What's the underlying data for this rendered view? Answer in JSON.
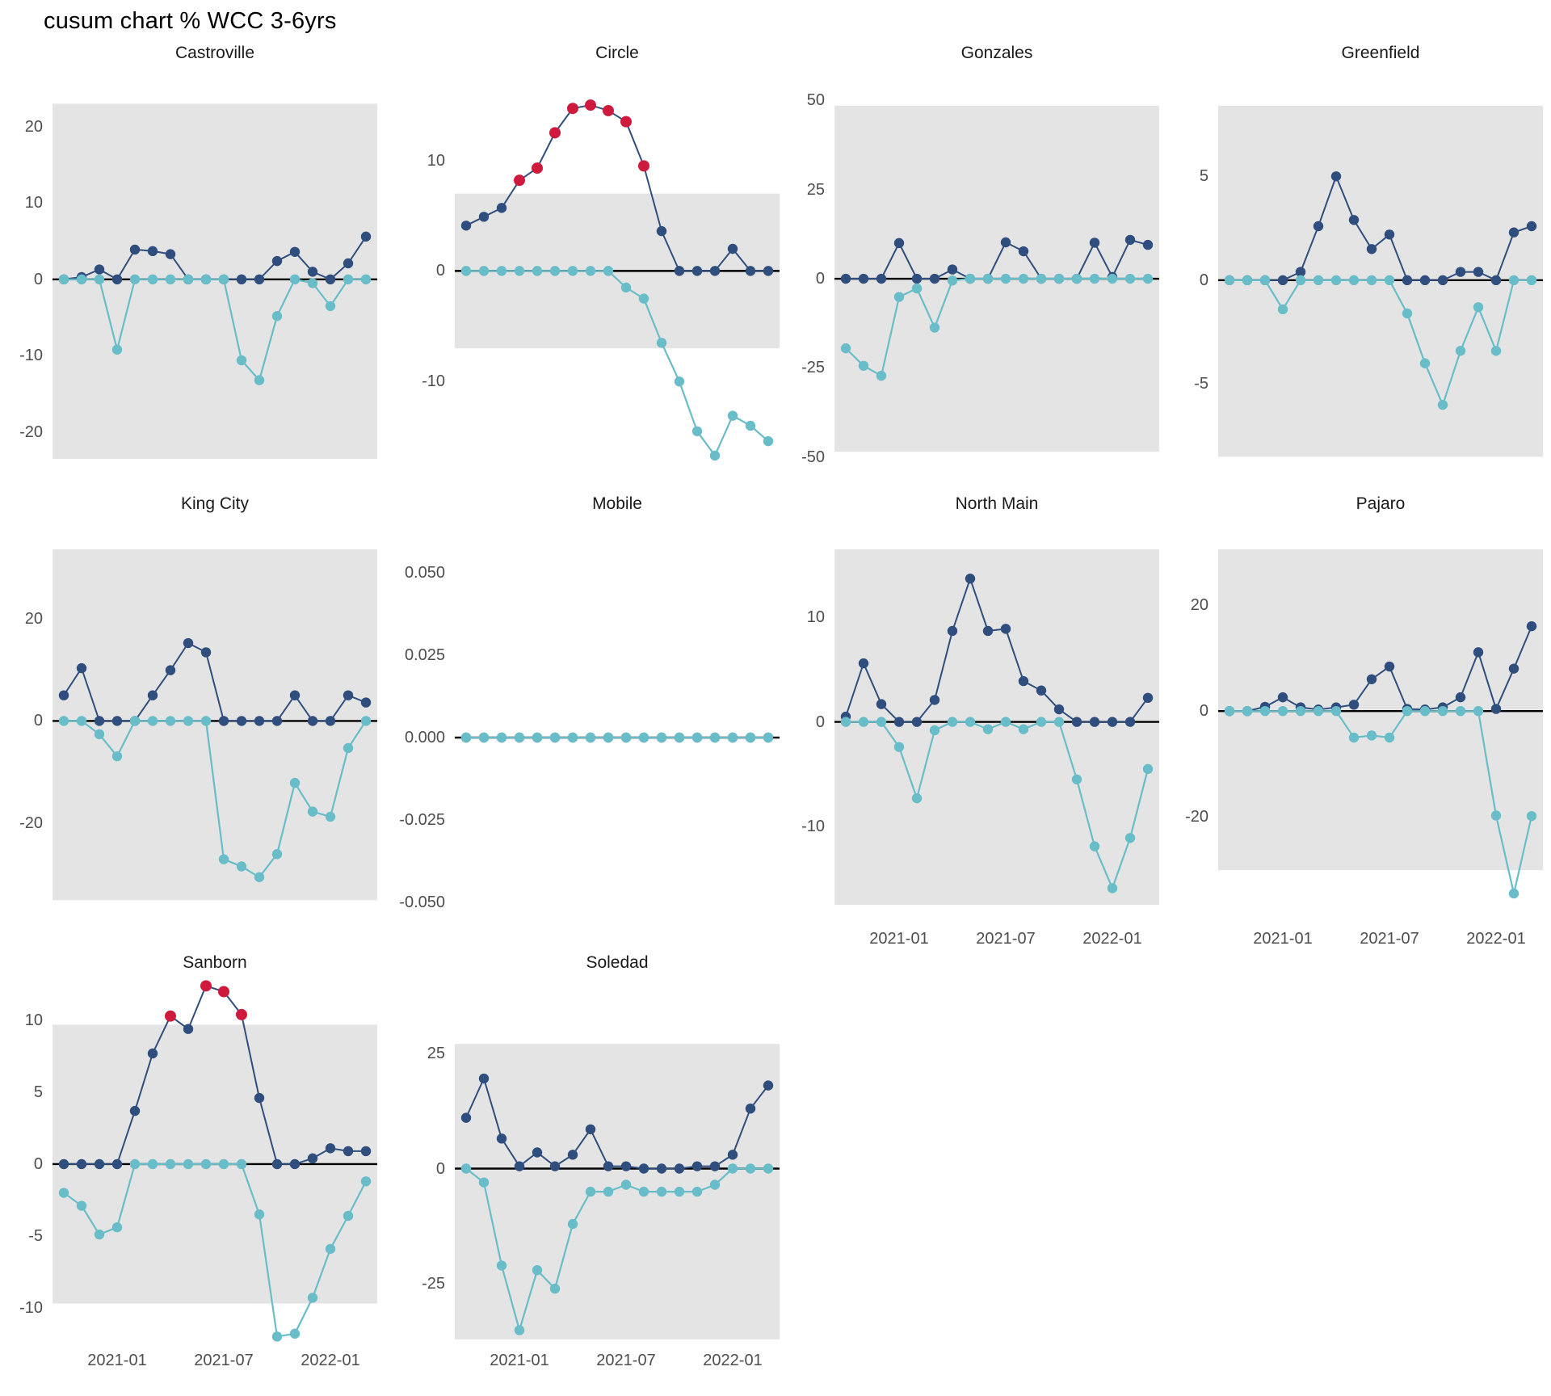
{
  "title": "cusum chart % WCC 3-6yrs",
  "chart_data": {
    "type": "line",
    "title": "cusum chart % WCC 3-6yrs",
    "subtitle": "",
    "x": [
      "2020-10",
      "2020-11",
      "2020-12",
      "2021-01",
      "2021-02",
      "2021-03",
      "2021-04",
      "2021-05",
      "2021-06",
      "2021-07",
      "2021-08",
      "2021-09",
      "2021-10",
      "2021-11",
      "2021-12",
      "2022-01",
      "2022-02",
      "2022-03"
    ],
    "x_tick_labels": [
      "2021-01",
      "2021-07",
      "2022-01"
    ],
    "x_tick_indices": [
      3,
      9,
      15
    ],
    "grid": "off",
    "legend": "none",
    "colors": {
      "pos_series": "#2F4E7D",
      "neg_series": "#69BDC9",
      "signal": "#CD1A3D",
      "band": "#E4E4E4",
      "zero_line": "#000000",
      "tick_text": "#4d4d4d",
      "title_text": "#1a1a1a"
    },
    "series_names": {
      "pos": "cusum positive",
      "neg": "cusum negative",
      "signal": "out-of-control signal"
    },
    "panels": [
      {
        "name": "Castroville",
        "row": 0,
        "col": 0,
        "x_axis": false,
        "yticks": [
          20,
          10,
          0,
          -10,
          -20
        ],
        "ytick_labels": [
          "20",
          "10",
          "0",
          "-10",
          "-20"
        ],
        "ylim": [
          -23.5,
          26
        ],
        "band": [
          -23.5,
          23
        ],
        "pos": [
          0,
          0.3,
          1.3,
          0,
          3.9,
          3.7,
          3.3,
          0,
          0,
          0,
          0,
          0,
          2.4,
          3.6,
          1.0,
          0,
          2.1,
          5.6
        ],
        "neg": [
          0,
          0,
          0,
          -9.2,
          0,
          0,
          0,
          0,
          0,
          0,
          -10.6,
          -13.2,
          -4.8,
          0,
          -0.5,
          -3.5,
          0,
          0
        ],
        "signals": []
      },
      {
        "name": "Circle",
        "row": 0,
        "col": 1,
        "x_axis": false,
        "yticks": [
          10,
          0,
          -10
        ],
        "ytick_labels": [
          "10",
          "0",
          "-10"
        ],
        "ylim": [
          -17,
          17.2
        ],
        "band": [
          -7,
          7
        ],
        "pos": [
          4.1,
          4.9,
          5.7,
          8.2,
          9.3,
          12.5,
          14.7,
          15.0,
          14.5,
          13.5,
          9.5,
          3.6,
          0,
          0,
          0,
          2.0,
          0,
          0
        ],
        "neg": [
          0,
          0,
          0,
          0,
          0,
          0,
          0,
          0,
          0,
          -1.5,
          -2.5,
          -6.5,
          -10,
          -14.5,
          -16.7,
          -13.1,
          -14.0,
          -15.4
        ],
        "signals": [
          3,
          4,
          5,
          6,
          7,
          8,
          9,
          10
        ]
      },
      {
        "name": "Gonzales",
        "row": 0,
        "col": 2,
        "x_axis": false,
        "yticks": [
          50,
          25,
          0,
          -25,
          -50
        ],
        "ytick_labels": [
          "50",
          "25",
          "0",
          "-25",
          "-50"
        ],
        "ylim": [
          -50.5,
          55.5
        ],
        "band": [
          -48.5,
          48.5
        ],
        "pos": [
          0,
          0,
          0,
          10,
          0,
          0,
          2.6,
          0,
          0,
          10.2,
          7.7,
          0,
          0,
          0,
          10.1,
          0.5,
          10.9,
          9.5
        ],
        "neg": [
          -19.5,
          -24.4,
          -27.2,
          -5.1,
          -2.7,
          -13.7,
          -0.5,
          0,
          0,
          0,
          0,
          0,
          0,
          0,
          0,
          0,
          0,
          0
        ],
        "signals": []
      },
      {
        "name": "Greenfield",
        "row": 0,
        "col": 3,
        "x_axis": false,
        "yticks": [
          5,
          0,
          -5
        ],
        "ytick_labels": [
          "5",
          "0",
          "-5"
        ],
        "ylim": [
          -8.6,
          9.6
        ],
        "band": [
          -8.5,
          8.4
        ],
        "pos": [
          0,
          0,
          0,
          0,
          0.4,
          2.6,
          5.0,
          2.9,
          1.5,
          2.2,
          0,
          0,
          0,
          0.4,
          0.4,
          0,
          2.3,
          2.6
        ],
        "neg": [
          0,
          0,
          0,
          -1.4,
          0,
          0,
          0,
          0,
          0,
          0,
          -1.6,
          -4.0,
          -6.0,
          -3.4,
          -1.3,
          -3.4,
          0,
          0
        ],
        "signals": []
      },
      {
        "name": "King City",
        "row": 1,
        "col": 0,
        "x_axis": false,
        "yticks": [
          20,
          0,
          -20
        ],
        "ytick_labels": [
          "20",
          "0",
          "-20"
        ],
        "ylim": [
          -40,
          33.5
        ],
        "band": [
          -35,
          34.5
        ],
        "pos": [
          5,
          10.3,
          0,
          0,
          0,
          5,
          9.9,
          15.2,
          13.4,
          0,
          0,
          0,
          0,
          5,
          0,
          0,
          5,
          3.6
        ],
        "neg": [
          0,
          0,
          -2.6,
          -6.9,
          0,
          0,
          0,
          0,
          0,
          -27,
          -28.4,
          -30.5,
          -26,
          -12.1,
          -17.7,
          -18.7,
          -5.3,
          0
        ],
        "signals": []
      },
      {
        "name": "Mobile",
        "row": 1,
        "col": 1,
        "x_axis": false,
        "yticks": [
          0.05,
          0.025,
          0,
          -0.025,
          -0.05
        ],
        "ytick_labels": [
          "0.050",
          "0.025",
          "0.000",
          "-0.025",
          "-0.050"
        ],
        "ylim": [
          -0.057,
          0.057
        ],
        "band": null,
        "pos": [
          0,
          0,
          0,
          0,
          0,
          0,
          0,
          0,
          0,
          0,
          0,
          0,
          0,
          0,
          0,
          0,
          0,
          0
        ],
        "neg": [
          0,
          0,
          0,
          0,
          0,
          0,
          0,
          0,
          0,
          0,
          0,
          0,
          0,
          0,
          0,
          0,
          0,
          0
        ],
        "signals": []
      },
      {
        "name": "North Main",
        "row": 1,
        "col": 2,
        "x_axis": true,
        "yticks": [
          10,
          0,
          -10
        ],
        "ytick_labels": [
          "10",
          "0",
          "-10"
        ],
        "ylim": [
          -19.5,
          16.5
        ],
        "band": [
          -17.5,
          17.5
        ],
        "pos": [
          0.5,
          5.6,
          1.7,
          0,
          0,
          2.1,
          8.7,
          13.7,
          8.7,
          8.9,
          3.9,
          3.0,
          1.2,
          0,
          0,
          0,
          0,
          2.3
        ],
        "neg": [
          0,
          0,
          0,
          -2.4,
          -7.3,
          -0.8,
          0,
          0,
          -0.7,
          0,
          -0.7,
          0,
          0,
          -5.5,
          -11.9,
          -15.9,
          -11.1,
          -4.5
        ],
        "signals": []
      },
      {
        "name": "Pajaro",
        "row": 1,
        "col": 3,
        "x_axis": true,
        "yticks": [
          20,
          0,
          -20
        ],
        "ytick_labels": [
          "20",
          "0",
          "-20"
        ],
        "ylim": [
          -40.5,
          30.5
        ],
        "band": [
          -30,
          31
        ],
        "pos": [
          0,
          0,
          0.8,
          2.6,
          0.7,
          0.3,
          0.7,
          1.2,
          6.0,
          8.4,
          0.4,
          0.3,
          0.7,
          2.6,
          11.1,
          0.4,
          8.0,
          16.0
        ],
        "neg": [
          0,
          0,
          0,
          0,
          0,
          0,
          0,
          -5.0,
          -4.6,
          -5.0,
          0,
          0,
          0,
          0,
          0,
          -19.7,
          -34.4,
          -19.8
        ],
        "signals": []
      },
      {
        "name": "Sanborn",
        "row": 2,
        "col": 0,
        "x_axis": true,
        "yticks": [
          10,
          5,
          0,
          -5,
          -10
        ],
        "ytick_labels": [
          "10",
          "5",
          "0",
          "-5",
          "-10"
        ],
        "ylim": [
          -12.2,
          12.7
        ],
        "band": [
          -9.7,
          9.7
        ],
        "pos": [
          0,
          0,
          0,
          0,
          3.7,
          7.7,
          10.3,
          9.4,
          12.4,
          12.0,
          10.4,
          4.6,
          0,
          0,
          0.4,
          1.1,
          0.9,
          0.9
        ],
        "neg": [
          -2.0,
          -2.9,
          -4.9,
          -4.4,
          0,
          0,
          0,
          0,
          0,
          0,
          0,
          -3.5,
          -12.0,
          -11.8,
          -9.3,
          -5.9,
          -3.6,
          -1.2
        ],
        "signals": [
          6,
          8,
          9,
          10
        ]
      },
      {
        "name": "Soledad",
        "row": 2,
        "col": 1,
        "x_axis": true,
        "yticks": [
          25,
          0,
          -25
        ],
        "ytick_labels": [
          "25",
          "0",
          "-25"
        ],
        "ylim": [
          -37,
          40.5
        ],
        "band": [
          -37.5,
          27
        ],
        "pos": [
          11,
          19.5,
          6.5,
          0.5,
          3.5,
          0.5,
          3,
          8.5,
          0.5,
          0.5,
          0,
          0,
          0,
          0.5,
          0.5,
          3,
          13,
          18
        ],
        "neg": [
          0,
          -3,
          -21,
          -35,
          -22,
          -26,
          -12,
          -5,
          -5,
          -3.5,
          -5,
          -5,
          -5,
          -5,
          -3.5,
          0,
          0,
          0
        ],
        "signals": []
      }
    ]
  }
}
